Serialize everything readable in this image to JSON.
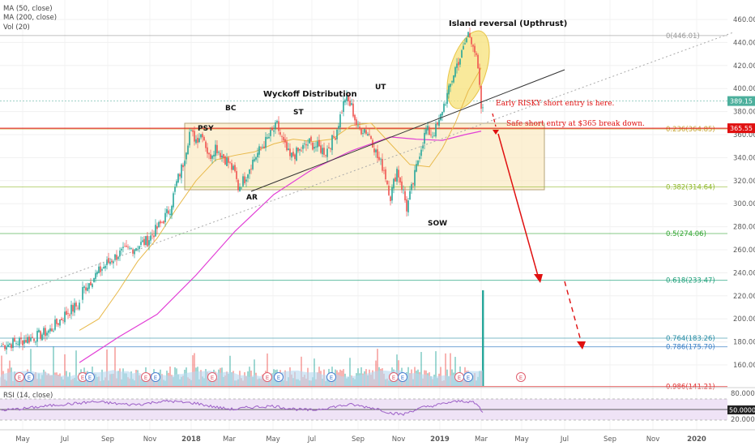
{
  "chart_data": {
    "type": "candlestick",
    "legend": {
      "ma50": "MA (50, close)",
      "ma200": "MA (200, close)",
      "vol": "Vol (20)",
      "rsi": "RSI (14, close)"
    },
    "colors": {
      "ma50": "#e8b94a",
      "ma200": "#e23fd6",
      "up": "#26a69a",
      "down": "#ef5350",
      "annot": "#e01010",
      "zone_fill": "#fbe8bd",
      "zone_border": "#b6a37a",
      "ellipse": "#f7e27a",
      "rsi": "#9c5fc7",
      "rsi_band": "#efe3f6"
    },
    "y_ticks": [
      "460.00",
      "440.00",
      "420.00",
      "400.00",
      "380.00",
      "360.00",
      "340.00",
      "320.00",
      "300.00",
      "280.00",
      "260.00",
      "240.00",
      "220.00",
      "200.00",
      "180.00",
      "160.00"
    ],
    "y_range": [
      140,
      465
    ],
    "rsi_ticks": [
      "80.0000",
      "50.0000",
      "20.0000"
    ],
    "x_labels": [
      "May",
      "Jul",
      "Sep",
      "Nov",
      "2018",
      "Mar",
      "May",
      "Jul",
      "Sep",
      "Nov",
      "2019",
      "Mar",
      "May",
      "Jul",
      "Sep",
      "Nov",
      "2020"
    ],
    "price_path": [
      [
        0,
        177
      ],
      [
        10,
        180
      ],
      [
        20,
        184
      ],
      [
        30,
        190
      ],
      [
        40,
        205
      ],
      [
        48,
        213
      ],
      [
        50,
        225
      ],
      [
        58,
        238
      ],
      [
        65,
        248
      ],
      [
        72,
        256
      ],
      [
        82,
        262
      ],
      [
        90,
        268
      ],
      [
        98,
        282
      ],
      [
        104,
        296
      ],
      [
        108,
        318
      ],
      [
        112,
        335
      ],
      [
        116,
        362
      ],
      [
        120,
        356
      ],
      [
        124,
        362
      ],
      [
        128,
        340
      ],
      [
        132,
        350
      ],
      [
        136,
        342
      ],
      [
        140,
        336
      ],
      [
        144,
        326
      ],
      [
        146,
        314
      ],
      [
        150,
        322
      ],
      [
        154,
        335
      ],
      [
        160,
        348
      ],
      [
        166,
        360
      ],
      [
        170,
        368
      ],
      [
        174,
        352
      ],
      [
        178,
        340
      ],
      [
        184,
        346
      ],
      [
        190,
        353
      ],
      [
        194,
        350
      ],
      [
        200,
        345
      ],
      [
        206,
        360
      ],
      [
        212,
        392
      ],
      [
        216,
        384
      ],
      [
        220,
        364
      ],
      [
        224,
        365
      ],
      [
        228,
        358
      ],
      [
        232,
        340
      ],
      [
        236,
        330
      ],
      [
        240,
        306
      ],
      [
        244,
        330
      ],
      [
        248,
        310
      ],
      [
        250,
        296
      ],
      [
        254,
        318
      ],
      [
        258,
        345
      ],
      [
        262,
        364
      ],
      [
        266,
        360
      ],
      [
        270,
        370
      ],
      [
        272,
        382
      ],
      [
        276,
        398
      ],
      [
        280,
        418
      ],
      [
        284,
        430
      ],
      [
        288,
        448
      ],
      [
        291,
        440
      ],
      [
        293,
        425
      ],
      [
        294,
        415
      ],
      [
        296,
        383
      ],
      [
        297,
        380
      ]
    ],
    "ma50_path": [
      [
        48,
        190
      ],
      [
        60,
        200
      ],
      [
        72,
        224
      ],
      [
        84,
        250
      ],
      [
        96,
        270
      ],
      [
        108,
        296
      ],
      [
        120,
        320
      ],
      [
        132,
        338
      ],
      [
        144,
        342
      ],
      [
        156,
        345
      ],
      [
        168,
        352
      ],
      [
        180,
        356
      ],
      [
        192,
        354
      ],
      [
        204,
        356
      ],
      [
        216,
        368
      ],
      [
        228,
        370
      ],
      [
        240,
        352
      ],
      [
        252,
        334
      ],
      [
        264,
        332
      ],
      [
        272,
        348
      ],
      [
        280,
        370
      ],
      [
        288,
        398
      ],
      [
        296,
        418
      ]
    ],
    "ma200_path": [
      [
        48,
        162
      ],
      [
        72,
        184
      ],
      [
        96,
        204
      ],
      [
        120,
        238
      ],
      [
        144,
        276
      ],
      [
        168,
        308
      ],
      [
        192,
        330
      ],
      [
        216,
        346
      ],
      [
        240,
        358
      ],
      [
        256,
        356
      ],
      [
        272,
        355
      ],
      [
        286,
        360
      ],
      [
        296,
        363
      ]
    ],
    "rsi_path": [
      [
        0,
        48
      ],
      [
        12,
        52
      ],
      [
        24,
        58
      ],
      [
        36,
        64
      ],
      [
        48,
        68
      ],
      [
        56,
        72
      ],
      [
        64,
        70
      ],
      [
        72,
        66
      ],
      [
        80,
        64
      ],
      [
        88,
        66
      ],
      [
        96,
        72
      ],
      [
        104,
        74
      ],
      [
        112,
        70
      ],
      [
        120,
        68
      ],
      [
        128,
        60
      ],
      [
        136,
        54
      ],
      [
        144,
        50
      ],
      [
        152,
        56
      ],
      [
        160,
        58
      ],
      [
        168,
        60
      ],
      [
        176,
        54
      ],
      [
        184,
        50
      ],
      [
        192,
        48
      ],
      [
        200,
        54
      ],
      [
        208,
        60
      ],
      [
        216,
        64
      ],
      [
        224,
        58
      ],
      [
        232,
        52
      ],
      [
        240,
        40
      ],
      [
        248,
        36
      ],
      [
        252,
        44
      ],
      [
        260,
        56
      ],
      [
        268,
        62
      ],
      [
        276,
        70
      ],
      [
        284,
        74
      ],
      [
        290,
        72
      ],
      [
        294,
        62
      ],
      [
        297,
        40
      ]
    ],
    "volume_spike_idx": 297,
    "annotations": {
      "title": "Island reversal (Upthrust)",
      "wyckoff": "Wyckoff Distribution",
      "psy": "PSY",
      "bc": "BC",
      "ar": "AR",
      "st": "ST",
      "ut": "UT",
      "sow": "SOW",
      "early_entry": "Early RISKY short entry is here.",
      "safe_entry": "Safe short entry at $365 break down."
    },
    "fib_levels": [
      {
        "label": "0(446.01)",
        "value": 446.01,
        "color": "#999999"
      },
      {
        "label": "0.236(364.85)",
        "value": 364.85,
        "color": "#c7a633"
      },
      {
        "label": "0.382(314.64)",
        "value": 314.64,
        "color": "#8fb82a"
      },
      {
        "label": "0.5(274.06)",
        "value": 274.06,
        "color": "#32a532"
      },
      {
        "label": "0.618(233.47)",
        "value": 233.47,
        "color": "#1fa07a"
      },
      {
        "label": "0.764(183.26)",
        "value": 183.26,
        "color": "#2a8ea6"
      },
      {
        "label": "0.786(175.70)",
        "value": 175.7,
        "color": "#3a7fc6"
      },
      {
        "label": "0.986(141.21)",
        "value": 141.21,
        "color": "#e03030"
      }
    ],
    "price_tags": [
      {
        "label": "389.15",
        "value": 389.15,
        "color": "#4caf9c"
      },
      {
        "label": "365.55",
        "value": 365.55,
        "color": "#e01010"
      }
    ]
  }
}
